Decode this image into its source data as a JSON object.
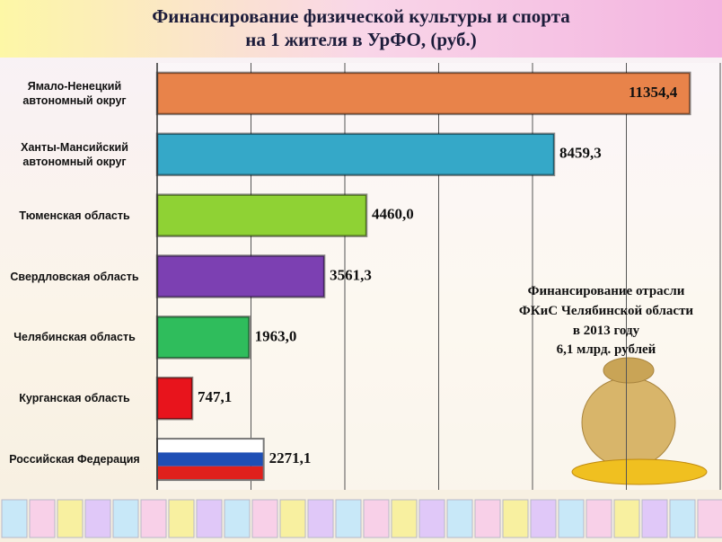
{
  "chart_data": {
    "type": "hbar",
    "title": [
      "Финансирование  физической культуры и спорта",
      "на 1 жителя в УрФО, (руб.)"
    ],
    "categories": [
      "Ямало-Ненецкий автономный округ",
      "Ханты-Мансийский автономный округ",
      "Тюменская область",
      "Свердловская область",
      "Челябинская область",
      "Курганская область",
      "Российская Федерация"
    ],
    "values": [
      11354.4,
      8459.3,
      4460.0,
      3561.3,
      1963.0,
      747.1,
      2271.1
    ],
    "value_labels": [
      "11354,4",
      "8459,3",
      "4460,0",
      "3561,3",
      "1963,0",
      "747,1",
      "2271,1"
    ],
    "colors": [
      "#e8834a",
      "#35a8c8",
      "#8fd234",
      "#7c40b2",
      "#2fbd5c",
      "#e8141c",
      [
        "#ffffff",
        "#1f4fb5",
        "#e0201c"
      ]
    ],
    "xlim": [
      0,
      12000
    ],
    "xticks": [
      0,
      2000,
      4000,
      6000,
      8000,
      10000,
      12000
    ],
    "grid": true,
    "annotation": [
      "Финансирование отрасли",
      "ФКиС Челябинской области",
      "в 2013 году",
      "6,1 млрд. рублей"
    ]
  }
}
